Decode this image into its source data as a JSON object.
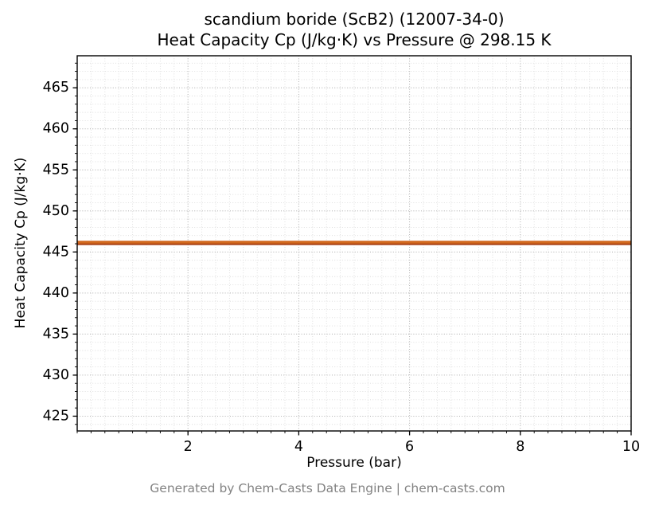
{
  "chart_data": {
    "type": "line",
    "title_line1": "scandium boride (ScB2) (12007-34-0)",
    "title_line2": "Heat Capacity Cp (J/kg·K) vs Pressure @ 298.15 K",
    "xlabel": "Pressure (bar)",
    "ylabel": "Heat Capacity Cp (J/kg·K)",
    "footer": "Generated by Chem-Casts Data Engine | chem-casts.com",
    "series": [
      {
        "name": "Cp",
        "x": [
          0,
          10
        ],
        "y": [
          446.1,
          446.1
        ],
        "color": "#d2691e",
        "edge_color": "#a63c10"
      }
    ],
    "xlim": [
      0,
      10
    ],
    "ylim": [
      423.2,
      468.9
    ],
    "xticks": [
      2,
      4,
      6,
      8,
      10
    ],
    "yticks": [
      425,
      430,
      435,
      440,
      445,
      450,
      455,
      460,
      465
    ],
    "x_minor_step": 0.25,
    "y_minor_step": 1,
    "grid": true,
    "grid_major_color": "#b5b5b5",
    "grid_minor_color": "#dcdcdc"
  }
}
